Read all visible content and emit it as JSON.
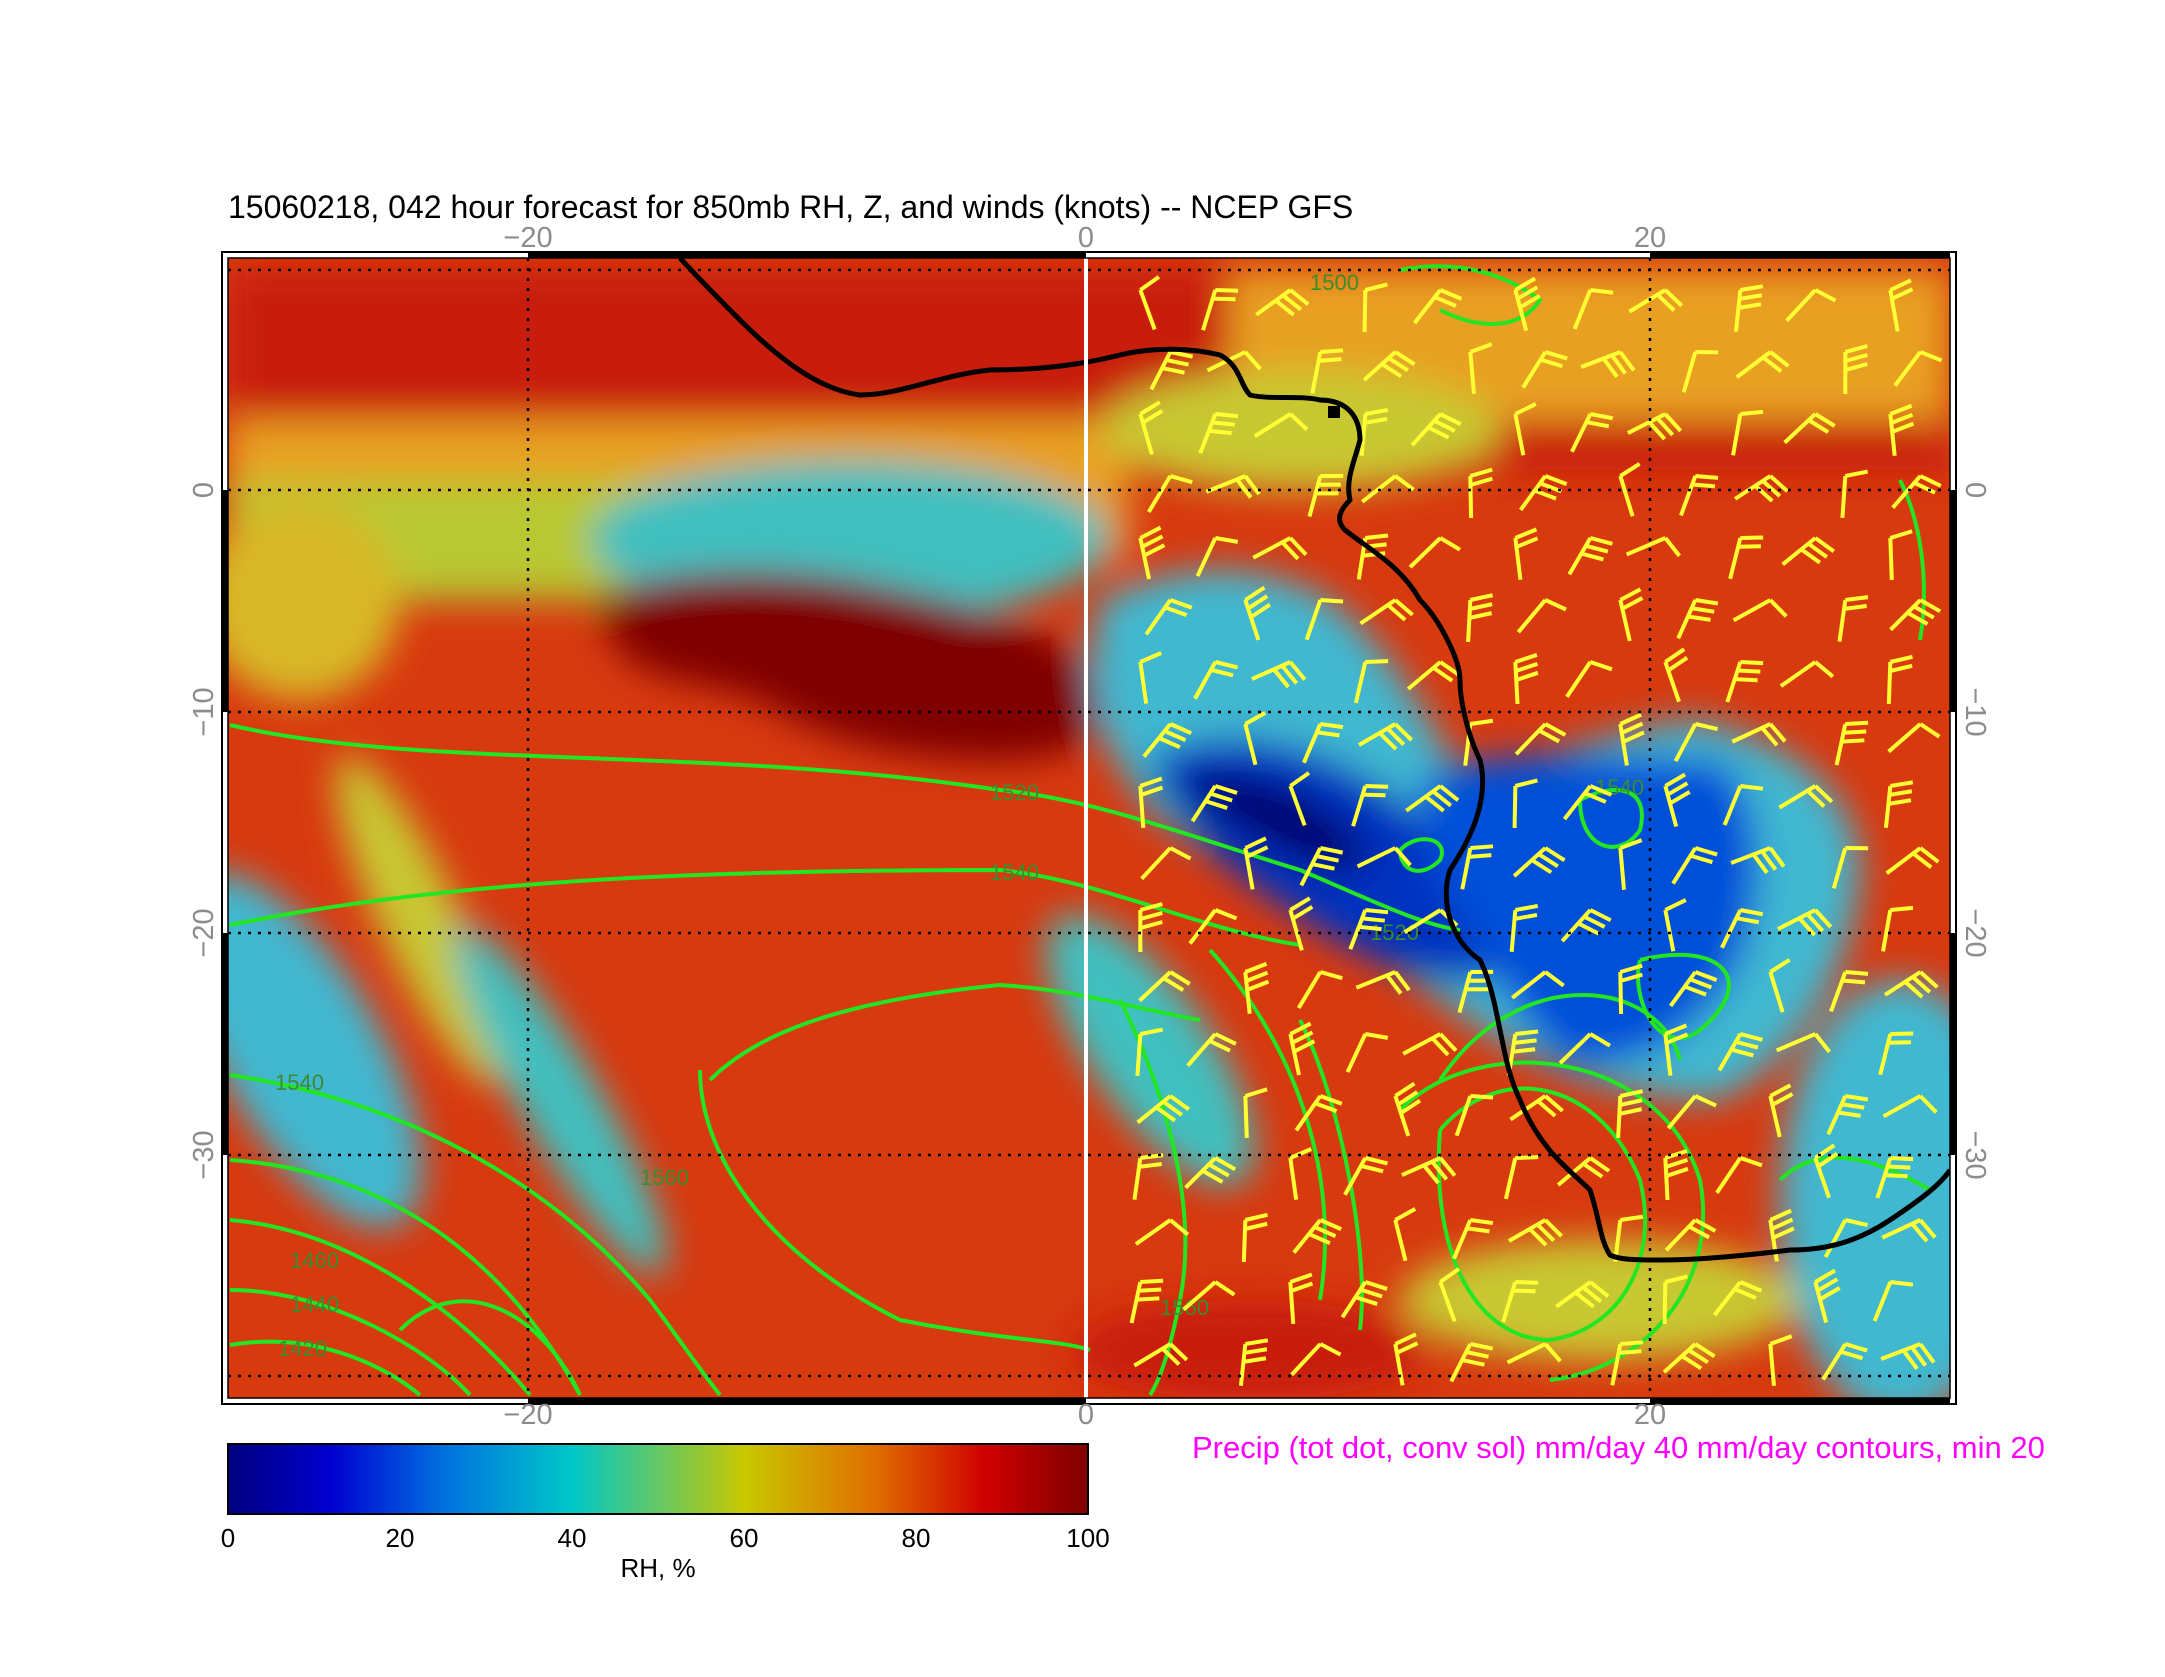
{
  "title": "15060218, 042 hour forecast for 850mb RH, Z, and winds (knots)  -- NCEP GFS",
  "map": {
    "lon_ticks": [
      "−20",
      "0",
      "20"
    ],
    "lat_ticks": [
      "0",
      "−10",
      "−20",
      "−30"
    ],
    "lon_range": [
      -31,
      31
    ],
    "lat_range": [
      -40,
      11
    ],
    "gridlines": "dotted",
    "coastline_color": "#000000",
    "meridian_0_color": "#ffffff"
  },
  "contours": {
    "field": "Z",
    "color": "#22e622",
    "labels": [
      "1520",
      "1540",
      "1520",
      "1540",
      "1560",
      "1460",
      "1440",
      "1420",
      "1500",
      "1540",
      "1560"
    ]
  },
  "wind_barbs": {
    "color": "#ffff33",
    "units": "knots"
  },
  "precip_note": {
    "text": "Precip (tot dot, conv sol) mm/day 40 mm/day contours, min 20",
    "color": "#ff00ff"
  },
  "colorbar": {
    "label": "RH, %",
    "ticks": [
      "0",
      "20",
      "40",
      "60",
      "80",
      "100"
    ],
    "range": [
      0,
      100
    ],
    "colors": [
      "#00007f",
      "#0000d0",
      "#0070e0",
      "#00c8c8",
      "#c8c800",
      "#e07000",
      "#d00000",
      "#7f0000"
    ]
  }
}
